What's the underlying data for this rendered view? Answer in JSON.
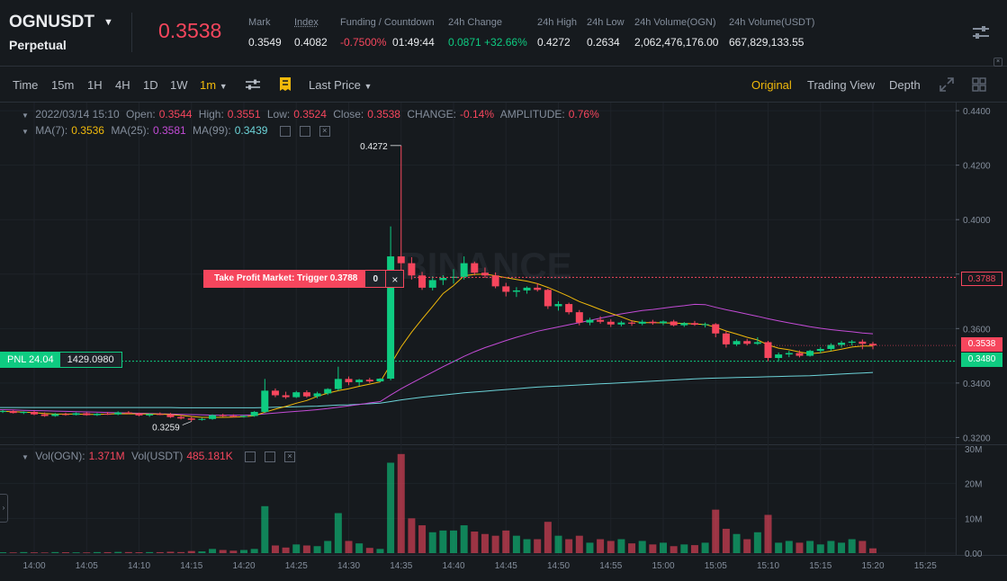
{
  "header": {
    "symbol": "OGNUSDT",
    "type": "Perpetual",
    "last_price": "0.3538",
    "stats": [
      {
        "label": "Mark",
        "value": "0.3549",
        "color": "normal"
      },
      {
        "label": "Index",
        "value": "0.4082",
        "color": "normal"
      },
      {
        "label": "Funding / Countdown",
        "value": "-0.7500%",
        "value2": "01:49:44",
        "color": "red"
      },
      {
        "label": "24h Change",
        "value": "0.0871 +32.66%",
        "color": "green"
      },
      {
        "label": "24h High",
        "value": "0.4272",
        "color": "normal"
      },
      {
        "label": "24h Low",
        "value": "0.2634",
        "color": "normal"
      },
      {
        "label": "24h Volume(OGN)",
        "value": "2,062,476,176.00",
        "color": "normal"
      },
      {
        "label": "24h Volume(USDT)",
        "value": "667,829,133.55",
        "color": "normal"
      }
    ]
  },
  "toolbar": {
    "time_label": "Time",
    "intervals": [
      "15m",
      "1H",
      "4H",
      "1D",
      "1W"
    ],
    "active_interval": "1m",
    "price_type": "Last Price",
    "views": [
      "Original",
      "Trading View",
      "Depth"
    ],
    "active_view": "Original"
  },
  "legend": {
    "ohlc_prefix": "2022/03/14 15:10",
    "open_label": "Open:",
    "open": "0.3544",
    "high_label": "High:",
    "high": "0.3551",
    "low_label": "Low:",
    "low": "0.3524",
    "close_label": "Close:",
    "close": "0.3538",
    "change_label": "CHANGE:",
    "change": "-0.14%",
    "amp_label": "AMPLITUDE:",
    "amp": "0.76%",
    "ma7_label": "MA(7):",
    "ma7": "0.3536",
    "ma25_label": "MA(25):",
    "ma25": "0.3581",
    "ma99_label": "MA(99):",
    "ma99": "0.3439",
    "vol_label": "Vol(OGN):",
    "vol": "1.371M",
    "volusdt_label": "Vol(USDT)",
    "volusdt": "485.181K"
  },
  "order": {
    "tp_text": "Take Profit Market: Trigger 0.3788",
    "tp_qty": "0",
    "tp_close": "×",
    "tp_price": "0.3788"
  },
  "position": {
    "pnl_label": "PNL 24.04",
    "entry": "1429.0980",
    "entry_price_tag": "0.3480"
  },
  "current_price_tag": "0.3538",
  "watermark": "BINANCE",
  "colors": {
    "up": "#0ecb81",
    "down": "#f6465d",
    "ma7": "#f0b90b",
    "ma25": "#c34bd6",
    "ma99": "#6cd3d8",
    "accent": "#f0b90b"
  },
  "chart_data": {
    "type": "candlestick",
    "x_ticks": [
      "14:00",
      "14:05",
      "14:10",
      "14:15",
      "14:20",
      "14:25",
      "14:30",
      "14:35",
      "14:40",
      "14:45",
      "14:50",
      "14:55",
      "15:00",
      "15:05",
      "15:10",
      "15:15",
      "15:20",
      "15:25"
    ],
    "y_ticks": [
      "0.4400",
      "0.4200",
      "0.4000",
      "0.3800",
      "0.3600",
      "0.3400",
      "0.3200"
    ],
    "ylim": [
      0.3175,
      0.443
    ],
    "vol_ticks": [
      "30M",
      "20M",
      "10M",
      "0.00"
    ],
    "vol_lim": [
      0,
      30
    ],
    "high_marker": "0.4272",
    "low_marker": "0.3259",
    "start_minute": -3,
    "candles": [
      [
        0.3296,
        0.3302,
        0.329,
        0.3297
      ],
      [
        0.3297,
        0.33,
        0.3288,
        0.329
      ],
      [
        0.329,
        0.3296,
        0.3286,
        0.3294
      ],
      [
        0.3294,
        0.3298,
        0.3282,
        0.3285
      ],
      [
        0.3285,
        0.3292,
        0.3276,
        0.3279
      ],
      [
        0.3279,
        0.329,
        0.3276,
        0.3286
      ],
      [
        0.3286,
        0.3291,
        0.328,
        0.3283
      ],
      [
        0.3283,
        0.3292,
        0.3281,
        0.3289
      ],
      [
        0.3289,
        0.3293,
        0.328,
        0.3282
      ],
      [
        0.3282,
        0.329,
        0.3279,
        0.3287
      ],
      [
        0.3287,
        0.3294,
        0.3283,
        0.3285
      ],
      [
        0.3285,
        0.3296,
        0.3282,
        0.3292
      ],
      [
        0.3292,
        0.3297,
        0.3286,
        0.3288
      ],
      [
        0.3288,
        0.3291,
        0.3278,
        0.3281
      ],
      [
        0.3281,
        0.3289,
        0.3276,
        0.3286
      ],
      [
        0.3286,
        0.3292,
        0.3282,
        0.3284
      ],
      [
        0.3284,
        0.329,
        0.3272,
        0.3275
      ],
      [
        0.3275,
        0.3283,
        0.3266,
        0.327
      ],
      [
        0.327,
        0.3277,
        0.3259,
        0.3265
      ],
      [
        0.3265,
        0.3272,
        0.3262,
        0.3268
      ],
      [
        0.3268,
        0.3285,
        0.3265,
        0.3282
      ],
      [
        0.3282,
        0.3287,
        0.3276,
        0.3279
      ],
      [
        0.3279,
        0.3285,
        0.3274,
        0.3277
      ],
      [
        0.3277,
        0.3282,
        0.3273,
        0.3279
      ],
      [
        0.3279,
        0.3297,
        0.3276,
        0.3294
      ],
      [
        0.3294,
        0.3415,
        0.329,
        0.3372
      ],
      [
        0.3372,
        0.338,
        0.3348,
        0.3355
      ],
      [
        0.3355,
        0.3368,
        0.3342,
        0.3348
      ],
      [
        0.3348,
        0.3371,
        0.3345,
        0.3366
      ],
      [
        0.3366,
        0.3373,
        0.3346,
        0.3351
      ],
      [
        0.3351,
        0.3368,
        0.3344,
        0.3362
      ],
      [
        0.3362,
        0.3381,
        0.3356,
        0.3378
      ],
      [
        0.3378,
        0.346,
        0.3372,
        0.3415
      ],
      [
        0.3415,
        0.3424,
        0.3392,
        0.3403
      ],
      [
        0.3403,
        0.3415,
        0.339,
        0.3412
      ],
      [
        0.3412,
        0.3419,
        0.34,
        0.3406
      ],
      [
        0.3406,
        0.3418,
        0.3404,
        0.3416
      ],
      [
        0.3416,
        0.3975,
        0.341,
        0.3865
      ],
      [
        0.3865,
        0.4272,
        0.381,
        0.384
      ],
      [
        0.384,
        0.3862,
        0.378,
        0.3795
      ],
      [
        0.3795,
        0.3808,
        0.3742,
        0.375
      ],
      [
        0.375,
        0.3792,
        0.374,
        0.3778
      ],
      [
        0.3778,
        0.3796,
        0.376,
        0.3786
      ],
      [
        0.3786,
        0.3818,
        0.3765,
        0.379
      ],
      [
        0.379,
        0.3865,
        0.378,
        0.384
      ],
      [
        0.384,
        0.3846,
        0.3795,
        0.3805
      ],
      [
        0.3805,
        0.3824,
        0.3786,
        0.3795
      ],
      [
        0.3795,
        0.3806,
        0.3748,
        0.3755
      ],
      [
        0.3755,
        0.3768,
        0.3718,
        0.3735
      ],
      [
        0.3735,
        0.3752,
        0.3716,
        0.374
      ],
      [
        0.374,
        0.3755,
        0.3728,
        0.375
      ],
      [
        0.375,
        0.3766,
        0.3736,
        0.3742
      ],
      [
        0.3742,
        0.3746,
        0.3672,
        0.3682
      ],
      [
        0.3682,
        0.37,
        0.3666,
        0.369
      ],
      [
        0.369,
        0.3695,
        0.3652,
        0.366
      ],
      [
        0.366,
        0.3668,
        0.3612,
        0.3622
      ],
      [
        0.3622,
        0.364,
        0.3612,
        0.3632
      ],
      [
        0.3632,
        0.3645,
        0.3618,
        0.3625
      ],
      [
        0.3625,
        0.3634,
        0.3606,
        0.3615
      ],
      [
        0.3615,
        0.3628,
        0.3608,
        0.3622
      ],
      [
        0.3622,
        0.363,
        0.361,
        0.3618
      ],
      [
        0.3618,
        0.3632,
        0.3612,
        0.3625
      ],
      [
        0.3625,
        0.3632,
        0.3614,
        0.362
      ],
      [
        0.362,
        0.363,
        0.3612,
        0.3626
      ],
      [
        0.3626,
        0.3632,
        0.3608,
        0.3612
      ],
      [
        0.3612,
        0.3624,
        0.3606,
        0.362
      ],
      [
        0.362,
        0.3628,
        0.361,
        0.3614
      ],
      [
        0.3614,
        0.3622,
        0.3604,
        0.3616
      ],
      [
        0.3616,
        0.362,
        0.3568,
        0.3582
      ],
      [
        0.3582,
        0.359,
        0.353,
        0.3542
      ],
      [
        0.3542,
        0.356,
        0.3536,
        0.3554
      ],
      [
        0.3554,
        0.3562,
        0.3538,
        0.3544
      ],
      [
        0.3544,
        0.3568,
        0.354,
        0.355
      ],
      [
        0.355,
        0.3555,
        0.348,
        0.3492
      ],
      [
        0.3492,
        0.3512,
        0.3478,
        0.3505
      ],
      [
        0.3505,
        0.3518,
        0.3495,
        0.351
      ],
      [
        0.351,
        0.352,
        0.3494,
        0.35
      ],
      [
        0.35,
        0.3522,
        0.3497,
        0.3518
      ],
      [
        0.3518,
        0.3532,
        0.351,
        0.3525
      ],
      [
        0.3525,
        0.3546,
        0.3518,
        0.354
      ],
      [
        0.354,
        0.3555,
        0.353,
        0.3548
      ],
      [
        0.3548,
        0.3558,
        0.3538,
        0.3552
      ],
      [
        0.3552,
        0.356,
        0.3524,
        0.3544
      ],
      [
        0.3544,
        0.3551,
        0.3524,
        0.3538
      ]
    ],
    "volumes": [
      0.25,
      0.2,
      0.3,
      0.22,
      0.18,
      0.3,
      0.25,
      0.22,
      0.2,
      0.3,
      0.28,
      0.35,
      0.3,
      0.25,
      0.3,
      0.28,
      0.4,
      0.3,
      0.6,
      0.5,
      1.2,
      0.9,
      0.7,
      0.9,
      1.2,
      13.5,
      2.2,
      1.6,
      2.5,
      2.2,
      2.0,
      3.5,
      11.5,
      3.5,
      2.8,
      1.5,
      1.2,
      26,
      28.5,
      10,
      8,
      6,
      6.5,
      6.5,
      8,
      6.2,
      5.5,
      5,
      6.5,
      5,
      4,
      4,
      9,
      5,
      4,
      5,
      3,
      4,
      3.5,
      4,
      2.8,
      3.5,
      2.5,
      3,
      2,
      2.5,
      2.3,
      3,
      12.5,
      7,
      5.5,
      4,
      6,
      11,
      3,
      3.5,
      3,
      3.5,
      2.5,
      3.5,
      3,
      4,
      3.5,
      1.37
    ],
    "ma7": [
      0.3296,
      0.3295,
      0.3293,
      0.3291,
      0.3288,
      0.3286,
      0.3286,
      0.3286,
      0.3285,
      0.3285,
      0.3286,
      0.3287,
      0.3287,
      0.3287,
      0.3286,
      0.3286,
      0.3284,
      0.3281,
      0.3277,
      0.3274,
      0.3274,
      0.3274,
      0.3275,
      0.3276,
      0.328,
      0.3293,
      0.3304,
      0.3314,
      0.3326,
      0.3336,
      0.3351,
      0.3363,
      0.3372,
      0.3379,
      0.3388,
      0.3396,
      0.3404,
      0.3468,
      0.3533,
      0.3587,
      0.3635,
      0.3681,
      0.3729,
      0.3758,
      0.3794,
      0.3799,
      0.38,
      0.3794,
      0.3787,
      0.378,
      0.3774,
      0.3765,
      0.3751,
      0.3735,
      0.3718,
      0.3699,
      0.3685,
      0.367,
      0.3656,
      0.3643,
      0.3628,
      0.3622,
      0.3622,
      0.3621,
      0.362,
      0.3619,
      0.3617,
      0.3615,
      0.3605,
      0.3591,
      0.358,
      0.3568,
      0.3558,
      0.354,
      0.3528,
      0.3522,
      0.3514,
      0.3508,
      0.3511,
      0.3517,
      0.3524,
      0.3532,
      0.3536,
      0.3536
    ],
    "ma25": [
      0.3302,
      0.3301,
      0.33,
      0.3299,
      0.3298,
      0.3297,
      0.3296,
      0.3295,
      0.3294,
      0.3293,
      0.3292,
      0.3291,
      0.329,
      0.3289,
      0.3288,
      0.3287,
      0.3286,
      0.3285,
      0.3284,
      0.3283,
      0.3282,
      0.3282,
      0.3282,
      0.3282,
      0.3283,
      0.3287,
      0.329,
      0.3293,
      0.3296,
      0.3299,
      0.3302,
      0.3306,
      0.3311,
      0.3316,
      0.3321,
      0.3327,
      0.3332,
      0.3356,
      0.3379,
      0.34,
      0.342,
      0.344,
      0.346,
      0.3479,
      0.3498,
      0.3515,
      0.353,
      0.3543,
      0.3556,
      0.3568,
      0.3579,
      0.359,
      0.3598,
      0.3606,
      0.3614,
      0.3622,
      0.363,
      0.3638,
      0.3646,
      0.3654,
      0.366,
      0.3666,
      0.367,
      0.3675,
      0.368,
      0.3684,
      0.3689,
      0.3688,
      0.3678,
      0.3669,
      0.3661,
      0.3653,
      0.3645,
      0.3636,
      0.3628,
      0.3621,
      0.3614,
      0.3607,
      0.3601,
      0.3596,
      0.3592,
      0.3588,
      0.3584,
      0.3581
    ],
    "ma99": [
      0.331,
      0.331,
      0.331,
      0.331,
      0.331,
      0.331,
      0.331,
      0.331,
      0.331,
      0.331,
      0.331,
      0.331,
      0.331,
      0.331,
      0.331,
      0.331,
      0.331,
      0.3309,
      0.3309,
      0.3309,
      0.3309,
      0.3309,
      0.3309,
      0.3309,
      0.3309,
      0.331,
      0.3311,
      0.3312,
      0.3313,
      0.3314,
      0.3315,
      0.3317,
      0.3319,
      0.332,
      0.3322,
      0.3324,
      0.3326,
      0.3332,
      0.3338,
      0.3343,
      0.3348,
      0.3352,
      0.3356,
      0.336,
      0.3364,
      0.3367,
      0.337,
      0.3373,
      0.3376,
      0.3379,
      0.3382,
      0.3385,
      0.3387,
      0.3389,
      0.3391,
      0.3393,
      0.3395,
      0.3397,
      0.3399,
      0.3401,
      0.3403,
      0.3405,
      0.3407,
      0.3409,
      0.3411,
      0.3413,
      0.3415,
      0.3417,
      0.3418,
      0.3419,
      0.342,
      0.3421,
      0.3422,
      0.3423,
      0.3424,
      0.3425,
      0.3426,
      0.3427,
      0.3429,
      0.3431,
      0.3433,
      0.3435,
      0.3437,
      0.3439
    ]
  }
}
